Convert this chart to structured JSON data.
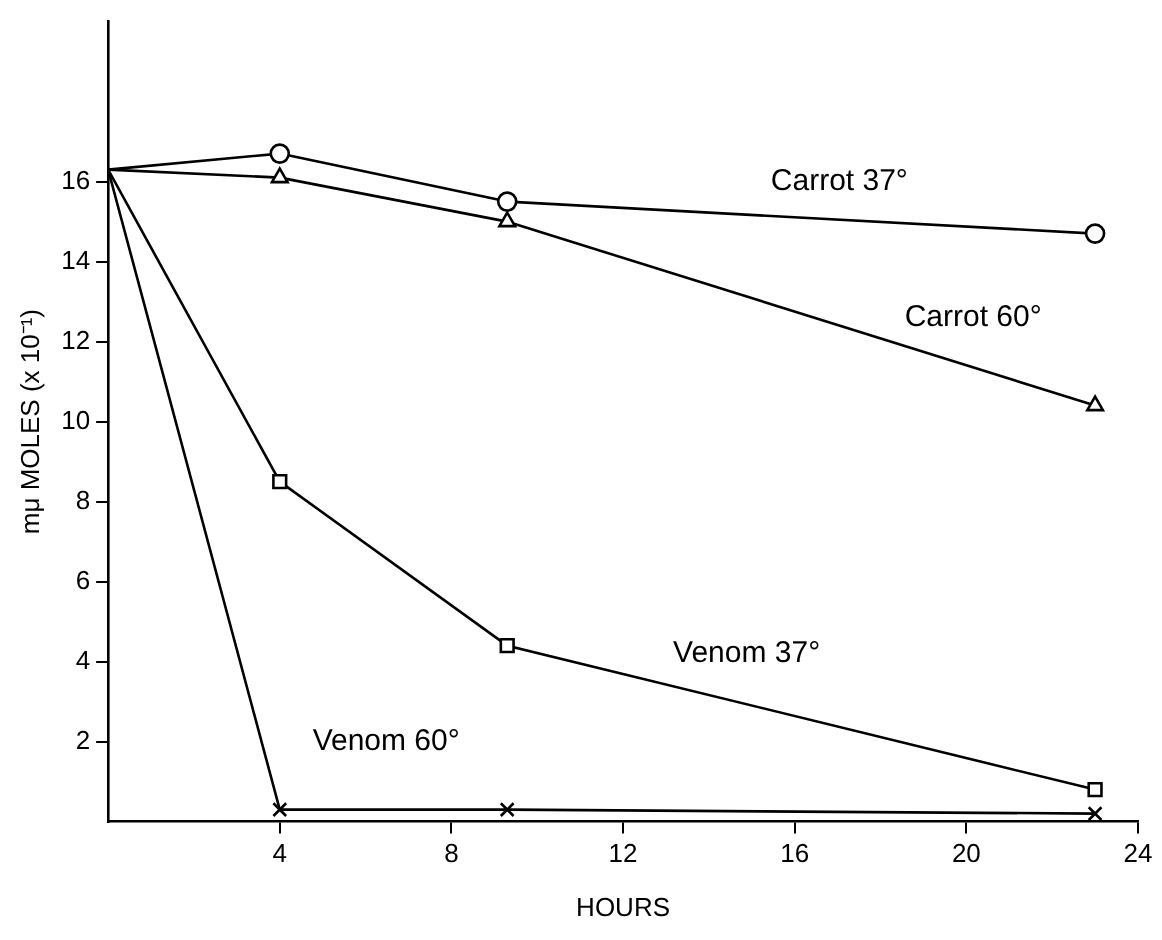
{
  "chart_data": {
    "type": "line",
    "xlabel": "HOURS",
    "ylabel": "mμ MOLES (x 10⁻¹)",
    "x": [
      0,
      4,
      9.3,
      23
    ],
    "series": [
      {
        "name": "Carrot 37°",
        "color": "#000000",
        "marker": "circle",
        "values": [
          16.3,
          16.7,
          15.5,
          14.7
        ]
      },
      {
        "name": "Carrot 60°",
        "color": "#000000",
        "marker": "triangle",
        "values": [
          16.3,
          16.1,
          15.0,
          10.4
        ]
      },
      {
        "name": "Venom 37°",
        "color": "#000000",
        "marker": "square",
        "values": [
          16.3,
          8.5,
          4.4,
          0.8
        ]
      },
      {
        "name": "Venom 60°",
        "color": "#000000",
        "marker": "cross",
        "values": [
          16.3,
          0.3,
          0.3,
          0.2
        ]
      }
    ],
    "xlim": [
      0,
      24
    ],
    "xticks": [
      4,
      8,
      12,
      16,
      20,
      24
    ],
    "ylim": [
      0,
      20
    ],
    "yticks": [
      2,
      4,
      6,
      8,
      10,
      12,
      14,
      16
    ],
    "grid": false,
    "legend": false
  }
}
